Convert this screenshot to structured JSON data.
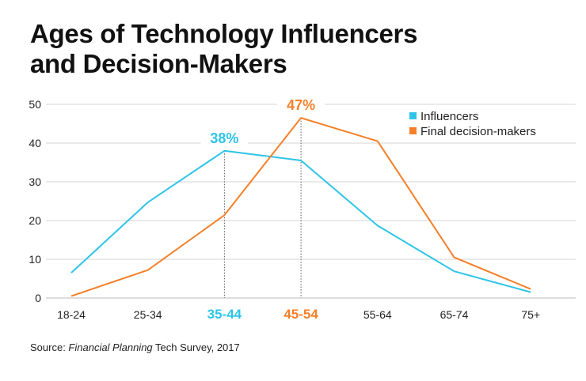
{
  "title_line1": "Ages of Technology Influencers",
  "title_line2": "and Decision-Makers",
  "source": {
    "prefix": "Source: ",
    "publication": "Financial Planning",
    "suffix": " Tech Survey, 2017"
  },
  "chart_data": {
    "type": "line",
    "categories": [
      "18-24",
      "25-34",
      "35-44",
      "45-54",
      "55-64",
      "65-74",
      "75+"
    ],
    "ylim": [
      0,
      50
    ],
    "yticks": [
      0,
      10,
      20,
      30,
      40,
      50
    ],
    "grid": true,
    "legend_placement": "top-right",
    "series": [
      {
        "name": "Influencers",
        "color": "#2ec4e8",
        "values": [
          6.5,
          24.7,
          38,
          35.5,
          18.7,
          6.9,
          1.5
        ]
      },
      {
        "name": "Final decision-makers",
        "color": "#f57f29",
        "values": [
          0.5,
          7.2,
          21.4,
          46.5,
          40.5,
          10.5,
          2.3
        ]
      }
    ],
    "annotations": [
      {
        "series": 0,
        "category": "35-44",
        "label": "38%"
      },
      {
        "series": 1,
        "category": "45-54",
        "label": "47%"
      }
    ]
  }
}
